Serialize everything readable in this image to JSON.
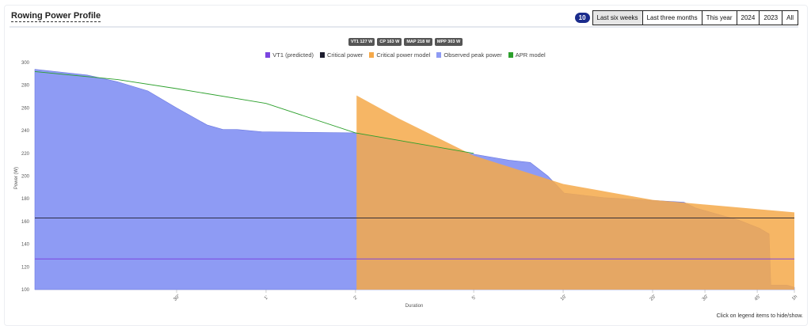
{
  "header": {
    "title": "Rowing Power Profile",
    "count_badge": "10",
    "ranges": [
      {
        "label": "Last six weeks",
        "active": true
      },
      {
        "label": "Last three months"
      },
      {
        "label": "This year"
      },
      {
        "label": "2024"
      },
      {
        "label": "2023"
      },
      {
        "label": "All"
      }
    ]
  },
  "badges": [
    "VT1 127 W",
    "CP 163 W",
    "MAP 218 W",
    "MPP 303 W"
  ],
  "hint": "Click on legend items to hide/show.",
  "chart_data": {
    "type": "area",
    "xlabel": "Duration",
    "ylabel": "Power (W)",
    "x_scale": "log",
    "xlim_seconds": [
      10,
      3600
    ],
    "ylim": [
      100,
      300
    ],
    "yticks": [
      100,
      120,
      140,
      160,
      180,
      200,
      220,
      240,
      260,
      280,
      300
    ],
    "xticks": [
      {
        "s": 30,
        "label": "30\""
      },
      {
        "s": 60,
        "label": "1'"
      },
      {
        "s": 120,
        "label": "2'"
      },
      {
        "s": 300,
        "label": "5'"
      },
      {
        "s": 600,
        "label": "10'"
      },
      {
        "s": 1200,
        "label": "20'"
      },
      {
        "s": 1800,
        "label": "30'"
      },
      {
        "s": 2700,
        "label": "45'"
      },
      {
        "s": 3600,
        "label": "1h"
      }
    ],
    "legend_placement": "top",
    "series": [
      {
        "name": "VT1 (predicted)",
        "kind": "hline",
        "color": "#7b45e0",
        "value": 127
      },
      {
        "name": "Critical power",
        "kind": "hline",
        "color": "#1c1c2e",
        "value": 163
      },
      {
        "name": "Critical power model",
        "kind": "area",
        "color": "#f5a94a",
        "points": [
          [
            121,
            271
          ],
          [
            167,
            251
          ],
          [
            300,
            218
          ],
          [
            600,
            193
          ],
          [
            1200,
            179
          ],
          [
            3600,
            168
          ]
        ]
      },
      {
        "name": "Observed peak power",
        "kind": "area",
        "color": "#8e9bf4",
        "points": [
          [
            10,
            294
          ],
          [
            15,
            289
          ],
          [
            19,
            283
          ],
          [
            24,
            275
          ],
          [
            30,
            260
          ],
          [
            38,
            245
          ],
          [
            43,
            241
          ],
          [
            48,
            241
          ],
          [
            58,
            239
          ],
          [
            120,
            238
          ],
          [
            167,
            231
          ],
          [
            305,
            219
          ],
          [
            394,
            214
          ],
          [
            465,
            212
          ],
          [
            533,
            200
          ],
          [
            605,
            185
          ],
          [
            822,
            181
          ],
          [
            1530,
            177
          ],
          [
            1670,
            172
          ],
          [
            1950,
            167
          ],
          [
            2350,
            161
          ],
          [
            2750,
            154
          ],
          [
            2960,
            149
          ],
          [
            3000,
            104
          ],
          [
            3400,
            104
          ],
          [
            3600,
            102
          ]
        ]
      },
      {
        "name": "APR model",
        "kind": "line",
        "color": "#2ca02c",
        "points": [
          [
            10,
            292
          ],
          [
            19,
            285
          ],
          [
            30,
            277
          ],
          [
            60,
            264
          ],
          [
            120,
            238
          ],
          [
            200,
            228
          ],
          [
            300,
            220
          ]
        ]
      }
    ]
  }
}
